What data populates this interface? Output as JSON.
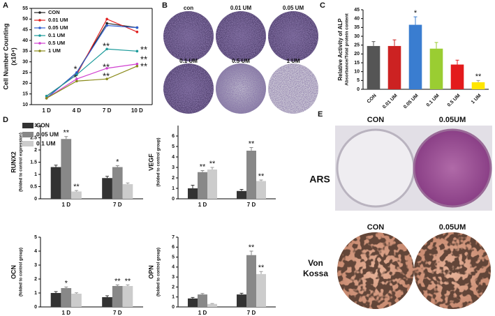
{
  "panel_letters": [
    "A",
    "B",
    "C",
    "D",
    "E"
  ],
  "panel_b": {
    "labels": [
      "con",
      "0.01 UM",
      "0.05 UM",
      "0.1 UM",
      "0.5 UM",
      "1 UM"
    ]
  },
  "panel_e": {
    "columns": [
      "CON",
      "0.05UM",
      "CON",
      "0.05UM"
    ],
    "rows": [
      "ARS",
      "Von",
      "Kossa"
    ]
  },
  "chart_data": [
    {
      "type": "line",
      "ylabel": [
        "Cell Number Counting",
        "(x10⁴)"
      ],
      "categories": [
        "1 D",
        "4 D",
        "7 D",
        "10 D"
      ],
      "ylim": [
        10,
        55
      ],
      "yticks": [
        10,
        15,
        20,
        25,
        30,
        35,
        40,
        45,
        50,
        55
      ],
      "series": [
        {
          "name": "CON",
          "color": "#222222",
          "values": [
            13,
            25,
            48,
            46
          ]
        },
        {
          "name": "0.01 UM",
          "color": "#e02020",
          "values": [
            14,
            24,
            50,
            44
          ]
        },
        {
          "name": "0.05 UM",
          "color": "#2f5fd0",
          "values": [
            13,
            25,
            47,
            46
          ]
        },
        {
          "name": "0.1 UM",
          "color": "#1a9a9a",
          "values": [
            14,
            24,
            36,
            35
          ]
        },
        {
          "name": "0.5 UM",
          "color": "#d040d0",
          "values": [
            13,
            22,
            27,
            29
          ]
        },
        {
          "name": "1 UM",
          "color": "#8a8a1a",
          "values": [
            13,
            21,
            22,
            28
          ]
        }
      ],
      "annotations": [
        "**",
        "**",
        "**",
        "**",
        "**",
        "**",
        "*",
        "*"
      ]
    },
    {
      "type": "bar",
      "ylabel": [
        "Relative Activity of ALP",
        "Absorbance/Total protein content"
      ],
      "categories": [
        "CON",
        "0.01 UM",
        "0.05 UM",
        "0.1 UM",
        "0.5 UM",
        "1 UM"
      ],
      "values": [
        24.5,
        24.5,
        36.5,
        23,
        14,
        4
      ],
      "errors": [
        2.5,
        3.5,
        4.5,
        3.5,
        2.5,
        1
      ],
      "colors": [
        "#555555",
        "#cc2222",
        "#3a7dd0",
        "#9acd32",
        "#e31a1c",
        "#ffe600"
      ],
      "sig": [
        null,
        null,
        "*",
        null,
        null,
        "**"
      ],
      "ylim": [
        0,
        45
      ],
      "yticks": [
        0,
        5,
        10,
        15,
        20,
        25,
        30,
        35,
        40,
        45
      ]
    },
    {
      "type": "bar",
      "ylabel": [
        "RUNX2",
        "(folded to control expression)"
      ],
      "categories": [
        "1 D",
        "7 D"
      ],
      "ylim": [
        0,
        3
      ],
      "yticks": [
        0,
        0.5,
        1,
        1.5,
        2,
        2.5,
        3
      ],
      "series": [
        {
          "name": "CON",
          "color": "#333333",
          "values": [
            1.3,
            0.85
          ],
          "errors": [
            0.08,
            0.07
          ],
          "sig": [
            null,
            null
          ]
        },
        {
          "name": "0.05 UM",
          "color": "#888888",
          "values": [
            2.45,
            1.3
          ],
          "errors": [
            0.1,
            0.06
          ],
          "sig": [
            "**",
            "*"
          ]
        },
        {
          "name": "0.1 UM",
          "color": "#cccccc",
          "values": [
            0.3,
            0.6
          ],
          "errors": [
            0.04,
            0.05
          ],
          "sig": [
            "**",
            null
          ]
        }
      ]
    },
    {
      "type": "bar",
      "ylabel": [
        "VEGF",
        "(folded to control group)"
      ],
      "categories": [
        "1 D",
        "7 D"
      ],
      "ylim": [
        0,
        7
      ],
      "yticks": [
        0,
        1,
        2,
        3,
        4,
        5,
        6
      ],
      "series": [
        {
          "color": "#333333",
          "values": [
            1.0,
            0.75
          ],
          "errors": [
            0.3,
            0.15
          ],
          "sig": [
            null,
            null
          ]
        },
        {
          "color": "#888888",
          "values": [
            2.55,
            4.6
          ],
          "errors": [
            0.15,
            0.3
          ],
          "sig": [
            "**",
            "**"
          ]
        },
        {
          "color": "#cccccc",
          "values": [
            2.8,
            1.7
          ],
          "errors": [
            0.2,
            0.1
          ],
          "sig": [
            "**",
            "**"
          ]
        }
      ]
    },
    {
      "type": "bar",
      "ylabel": [
        "OCN",
        "(folded to control group)"
      ],
      "categories": [
        "1 D",
        "7 D"
      ],
      "ylim": [
        0,
        5
      ],
      "yticks": [
        0,
        1,
        2,
        3,
        4,
        5
      ],
      "series": [
        {
          "color": "#333333",
          "values": [
            1.0,
            0.7
          ],
          "errors": [
            0.1,
            0.1
          ],
          "sig": [
            null,
            null
          ]
        },
        {
          "color": "#888888",
          "values": [
            1.35,
            1.5
          ],
          "errors": [
            0.08,
            0.08
          ],
          "sig": [
            "*",
            "**"
          ]
        },
        {
          "color": "#cccccc",
          "values": [
            0.95,
            1.5
          ],
          "errors": [
            0.06,
            0.08
          ],
          "sig": [
            null,
            "**"
          ]
        }
      ]
    },
    {
      "type": "bar",
      "ylabel": [
        "OPN",
        "(folded to control group)"
      ],
      "categories": [
        "1 D",
        "7 D"
      ],
      "ylim": [
        0,
        7
      ],
      "yticks": [
        0,
        1,
        2,
        3,
        4,
        5,
        6,
        7
      ],
      "series": [
        {
          "color": "#333333",
          "values": [
            0.85,
            1.25
          ],
          "errors": [
            0.1,
            0.12
          ],
          "sig": [
            null,
            null
          ]
        },
        {
          "color": "#888888",
          "values": [
            1.25,
            5.2
          ],
          "errors": [
            0.1,
            0.4
          ],
          "sig": [
            null,
            "**"
          ]
        },
        {
          "color": "#cccccc",
          "values": [
            0.3,
            3.3
          ],
          "errors": [
            0.04,
            0.25
          ],
          "sig": [
            null,
            "**"
          ]
        }
      ]
    }
  ]
}
